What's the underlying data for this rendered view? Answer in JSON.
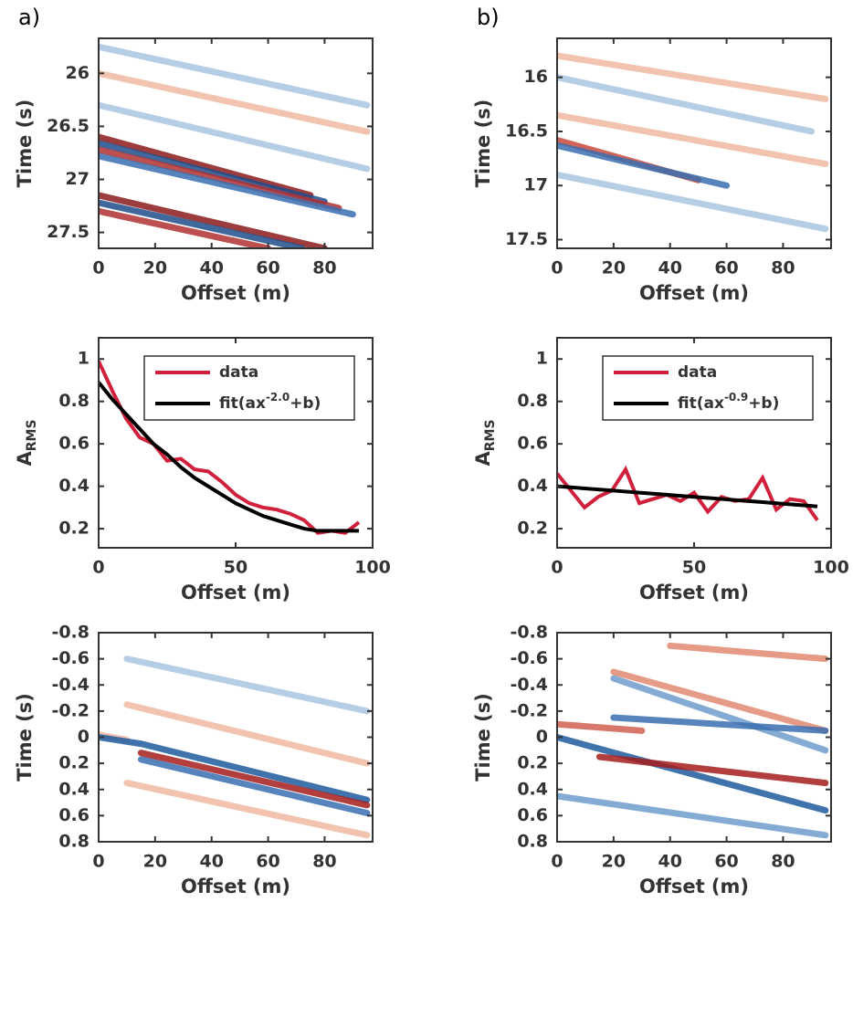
{
  "chart_data": [
    {
      "type": "image",
      "panel_label": "a)",
      "xlabel": "Offset (m)",
      "ylabel": "Time (s)",
      "xlim": [
        0,
        97
      ],
      "xticks": [
        0,
        20,
        40,
        60,
        80
      ],
      "ylim": [
        25.67,
        27.65
      ],
      "yticks": [
        26,
        26.5,
        27,
        27.5
      ],
      "y_inverted": true,
      "events": [
        {
          "color": "#a9c6e0",
          "x": [
            0,
            95
          ],
          "y": [
            25.75,
            26.3
          ]
        },
        {
          "color": "#f0b8a0",
          "x": [
            0,
            95
          ],
          "y": [
            26.0,
            26.55
          ]
        },
        {
          "color": "#a9c6e0",
          "x": [
            0,
            95
          ],
          "y": [
            26.3,
            26.9
          ]
        },
        {
          "color": "#8b1a1a",
          "x": [
            0,
            75
          ],
          "y": [
            26.6,
            27.15
          ]
        },
        {
          "color": "#1f4e8c",
          "x": [
            0,
            80
          ],
          "y": [
            26.66,
            27.21
          ]
        },
        {
          "color": "#b03030",
          "x": [
            0,
            85
          ],
          "y": [
            26.72,
            27.27
          ]
        },
        {
          "color": "#3a6fb0",
          "x": [
            0,
            90
          ],
          "y": [
            26.78,
            27.33
          ]
        },
        {
          "color": "#8b1a1a",
          "x": [
            0,
            80
          ],
          "y": [
            27.15,
            27.65
          ]
        },
        {
          "color": "#1f4e8c",
          "x": [
            0,
            72
          ],
          "y": [
            27.22,
            27.65
          ]
        },
        {
          "color": "#b03030",
          "x": [
            0,
            60
          ],
          "y": [
            27.3,
            27.65
          ]
        }
      ]
    },
    {
      "type": "image",
      "panel_label": "b)",
      "xlabel": "Offset (m)",
      "ylabel": "Time (s)",
      "xlim": [
        0,
        97
      ],
      "xticks": [
        0,
        20,
        40,
        60,
        80
      ],
      "ylim": [
        15.64,
        17.58
      ],
      "yticks": [
        16,
        16.5,
        17,
        17.5
      ],
      "y_inverted": true,
      "events": [
        {
          "color": "#f0b8a0",
          "x": [
            0,
            95
          ],
          "y": [
            15.8,
            16.2
          ]
        },
        {
          "color": "#a9c6e0",
          "x": [
            0,
            90
          ],
          "y": [
            16.0,
            16.5
          ]
        },
        {
          "color": "#f0b8a0",
          "x": [
            0,
            95
          ],
          "y": [
            16.35,
            16.8
          ]
        },
        {
          "color": "#c84a3a",
          "x": [
            0,
            50
          ],
          "y": [
            16.58,
            16.95
          ]
        },
        {
          "color": "#3a6fb0",
          "x": [
            0,
            60
          ],
          "y": [
            16.63,
            17.0
          ]
        },
        {
          "color": "#a9c6e0",
          "x": [
            0,
            95
          ],
          "y": [
            16.9,
            17.4
          ]
        }
      ]
    },
    {
      "type": "line",
      "xlabel": "Offset (m)",
      "ylabel": "ARMS",
      "xlim": [
        0,
        100
      ],
      "xticks": [
        0,
        50,
        100
      ],
      "ylim": [
        0.11,
        1.1
      ],
      "yticks": [
        0.2,
        0.4,
        0.6,
        0.8,
        1
      ],
      "legend": "top-right",
      "x": [
        0,
        5,
        10,
        15,
        20,
        25,
        30,
        35,
        40,
        45,
        50,
        55,
        60,
        65,
        70,
        75,
        80,
        85,
        90,
        95
      ],
      "series": [
        {
          "name": "data",
          "color": "#d0203c",
          "values": [
            0.99,
            0.85,
            0.72,
            0.63,
            0.6,
            0.52,
            0.53,
            0.48,
            0.47,
            0.42,
            0.36,
            0.32,
            0.3,
            0.29,
            0.27,
            0.24,
            0.18,
            0.19,
            0.18,
            0.23
          ]
        },
        {
          "name": "fit(ax-2.0+b)",
          "color": "#000000",
          "values": [
            0.89,
            0.81,
            0.74,
            0.67,
            0.6,
            0.55,
            0.49,
            0.44,
            0.4,
            0.36,
            0.32,
            0.29,
            0.26,
            0.24,
            0.22,
            0.2,
            0.19,
            0.19,
            0.19,
            0.19
          ]
        }
      ]
    },
    {
      "type": "line",
      "xlabel": "Offset (m)",
      "ylabel": "ARMS",
      "xlim": [
        0,
        100
      ],
      "xticks": [
        0,
        50,
        100
      ],
      "ylim": [
        0.11,
        1.1
      ],
      "yticks": [
        0.2,
        0.4,
        0.6,
        0.8,
        1
      ],
      "legend": "top-right",
      "x": [
        0,
        5,
        10,
        15,
        20,
        25,
        30,
        35,
        40,
        45,
        50,
        55,
        60,
        65,
        70,
        75,
        80,
        85,
        90,
        95
      ],
      "series": [
        {
          "name": "data",
          "color": "#d0203c",
          "values": [
            0.46,
            0.38,
            0.3,
            0.35,
            0.38,
            0.48,
            0.32,
            0.34,
            0.36,
            0.33,
            0.37,
            0.28,
            0.35,
            0.33,
            0.34,
            0.44,
            0.29,
            0.34,
            0.33,
            0.24
          ]
        },
        {
          "name": "fit(ax-0.9+b)",
          "color": "#000000",
          "values": [
            0.4,
            0.395,
            0.39,
            0.385,
            0.38,
            0.375,
            0.37,
            0.365,
            0.36,
            0.355,
            0.35,
            0.345,
            0.34,
            0.335,
            0.33,
            0.325,
            0.32,
            0.315,
            0.31,
            0.305
          ]
        }
      ]
    },
    {
      "type": "image",
      "xlabel": "Offset (m)",
      "ylabel": "Time (s)",
      "xlim": [
        0,
        97
      ],
      "xticks": [
        0,
        20,
        40,
        60,
        80
      ],
      "ylim": [
        -0.8,
        0.8
      ],
      "yticks": [
        -0.8,
        -0.6,
        -0.4,
        -0.2,
        0,
        0.2,
        0.4,
        0.6,
        0.8
      ],
      "y_inverted": true,
      "events": [
        {
          "color": "#a9c6e0",
          "x": [
            10,
            95
          ],
          "y": [
            -0.6,
            -0.2
          ]
        },
        {
          "color": "#f0b8a0",
          "x": [
            10,
            95
          ],
          "y": [
            -0.25,
            0.2
          ]
        },
        {
          "color": "#f0b8a0",
          "x": [
            0,
            10
          ],
          "y": [
            -0.02,
            0.02
          ]
        },
        {
          "color": "#1f5a9e",
          "x": [
            0,
            15,
            95
          ],
          "y": [
            0.0,
            0.05,
            0.48
          ]
        },
        {
          "color": "#a51c1c",
          "x": [
            15,
            95
          ],
          "y": [
            0.12,
            0.52
          ]
        },
        {
          "color": "#3a6fb0",
          "x": [
            15,
            95
          ],
          "y": [
            0.17,
            0.58
          ]
        },
        {
          "color": "#f0b8a0",
          "x": [
            10,
            95
          ],
          "y": [
            0.35,
            0.75
          ]
        }
      ]
    },
    {
      "type": "image",
      "xlabel": "Offset (m)",
      "ylabel": "Time (s)",
      "xlim": [
        0,
        97
      ],
      "xticks": [
        0,
        20,
        40,
        60,
        80
      ],
      "ylim": [
        -0.8,
        0.8
      ],
      "yticks": [
        -0.8,
        -0.6,
        -0.4,
        -0.2,
        0,
        0.2,
        0.4,
        0.6,
        0.8
      ],
      "y_inverted": true,
      "events": [
        {
          "color": "#e08a70",
          "x": [
            40,
            95
          ],
          "y": [
            -0.7,
            -0.6
          ]
        },
        {
          "color": "#e08a70",
          "x": [
            20,
            95
          ],
          "y": [
            -0.5,
            -0.05
          ]
        },
        {
          "color": "#6e9ccc",
          "x": [
            20,
            95
          ],
          "y": [
            -0.45,
            0.1
          ]
        },
        {
          "color": "#d06050",
          "x": [
            0,
            30
          ],
          "y": [
            -0.1,
            -0.05
          ]
        },
        {
          "color": "#3a6fb0",
          "x": [
            20,
            95
          ],
          "y": [
            -0.15,
            -0.05
          ]
        },
        {
          "color": "#1f5a9e",
          "x": [
            0,
            95
          ],
          "y": [
            0.0,
            0.56
          ]
        },
        {
          "color": "#a51c1c",
          "x": [
            15,
            95
          ],
          "y": [
            0.15,
            0.35
          ]
        },
        {
          "color": "#6e9ccc",
          "x": [
            0,
            95
          ],
          "y": [
            0.45,
            0.75
          ]
        }
      ]
    }
  ]
}
